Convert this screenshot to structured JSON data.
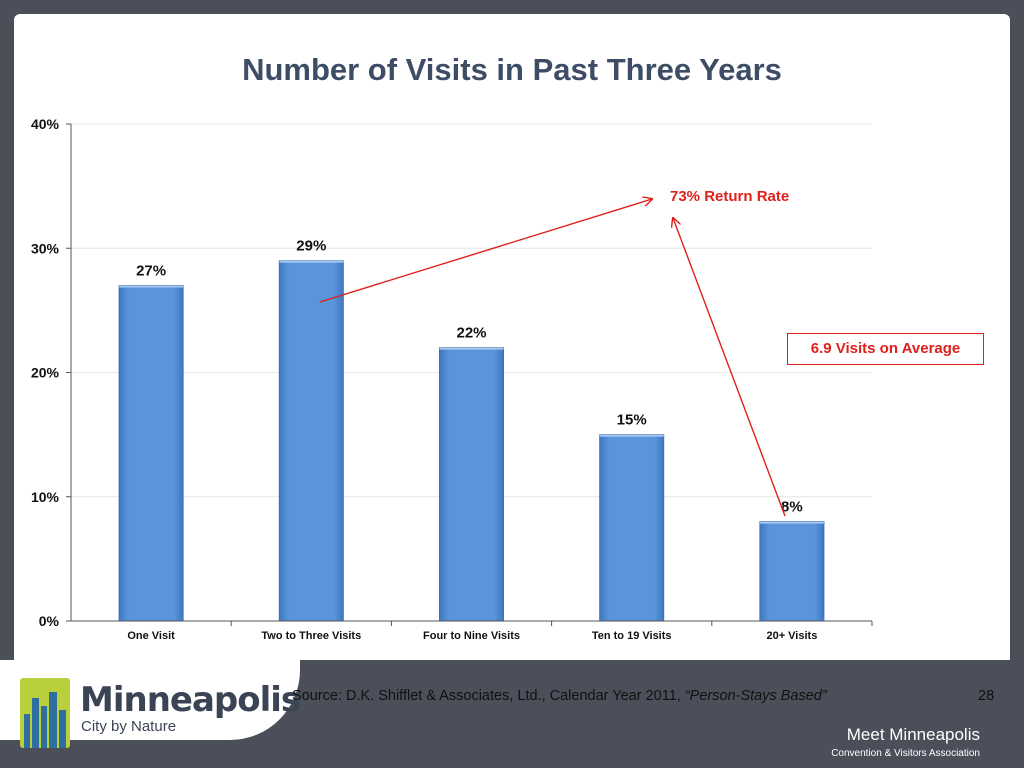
{
  "title": "Number of Visits in Past Three Years",
  "chart_data": {
    "type": "bar",
    "categories": [
      "One Visit",
      "Two to Three Visits",
      "Four to Nine Visits",
      "Ten to 19 Visits",
      "20+ Visits"
    ],
    "values": [
      27,
      29,
      22,
      15,
      8
    ],
    "data_labels": [
      "27%",
      "29%",
      "22%",
      "15%",
      "8%"
    ],
    "y_ticks": [
      0,
      10,
      20,
      30,
      40
    ],
    "y_tick_labels": [
      "0%",
      "10%",
      "20%",
      "30%",
      "40%"
    ],
    "ylim": [
      0,
      40
    ],
    "grid": true,
    "bar_color": "#5b95d9",
    "annotations": {
      "return_rate": "73% Return Rate",
      "average": "6.9 Visits on Average",
      "color": "#e0201b"
    }
  },
  "footer": {
    "brand_name": "Minneapolis",
    "brand_tagline": "City by Nature",
    "source_prefix": "Source: D.K. Shifflet & Associates, Ltd., Calendar Year 2011, ",
    "source_italic": "“Person-Stays Based”",
    "page_number": "28",
    "org_name": "Meet Minneapolis",
    "org_subtitle": "Convention & Visitors Association"
  },
  "colors": {
    "background": "#4a4f59",
    "title": "#3d4d66",
    "logo_green": "#b9cf3c",
    "logo_blue": "#2f6fa0"
  }
}
